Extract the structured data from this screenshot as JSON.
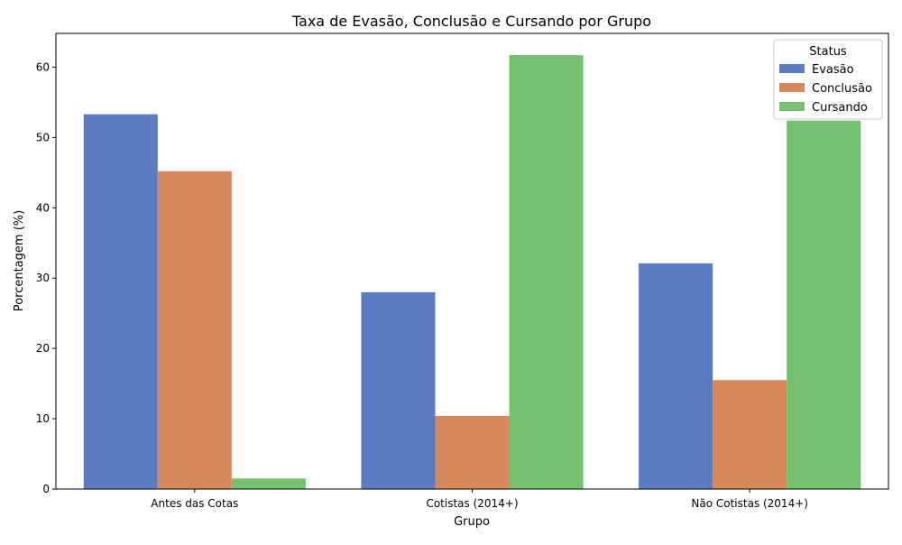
{
  "chart_data": {
    "type": "bar",
    "title": "Taxa de Evasão, Conclusão e Cursando por Grupo",
    "xlabel": "Grupo",
    "ylabel": "Porcentagem (%)",
    "categories": [
      "Antes das Cotas",
      "Cotistas (2014+)",
      "Não Cotistas (2014+)"
    ],
    "series": [
      {
        "name": "Evasão",
        "color": "#5a7cc2",
        "values": [
          53.3,
          28.0,
          32.1
        ]
      },
      {
        "name": "Conclusão",
        "color": "#d8895c",
        "values": [
          45.2,
          10.4,
          15.5
        ]
      },
      {
        "name": "Cursando",
        "color": "#74c06f",
        "values": [
          1.5,
          61.7,
          52.4
        ]
      }
    ],
    "ylim": [
      0,
      64.8
    ],
    "yticks": [
      0,
      10,
      20,
      30,
      40,
      50,
      60
    ],
    "grid": false,
    "legend": {
      "title": "Status",
      "placement": "top-right"
    }
  }
}
